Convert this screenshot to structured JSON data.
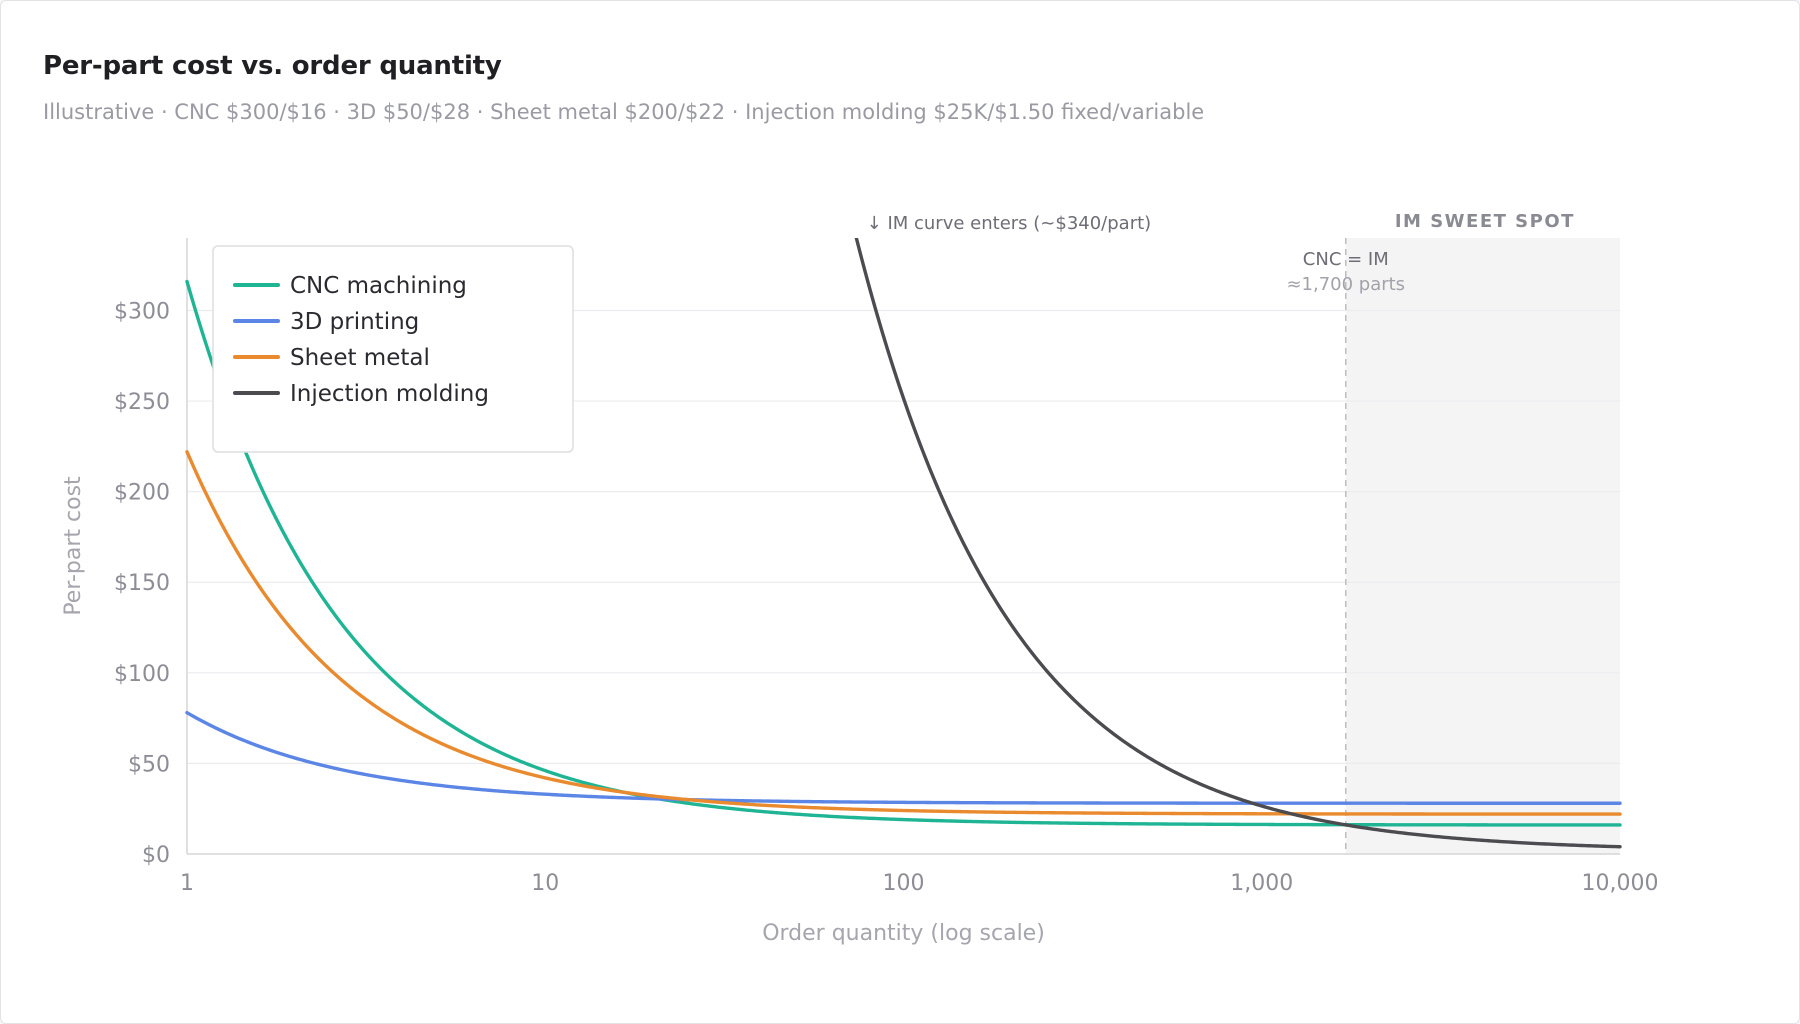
{
  "header": {
    "title": "Per-part cost vs. order quantity",
    "subtitle": "Illustrative · CNC $300/$16 · 3D $50/$28 · Sheet metal $200/$22 · Injection molding $25K/$1.50 fixed/variable"
  },
  "chart_data": {
    "type": "line",
    "xscale": "log",
    "xlim": [
      1,
      10000
    ],
    "ylim": [
      0,
      340
    ],
    "xlabel": "Order quantity (log scale)",
    "ylabel": "Per-part cost",
    "grid": true,
    "legend_position": "top-left",
    "x_ticks": [
      {
        "value": 1,
        "label": "1"
      },
      {
        "value": 10,
        "label": "10"
      },
      {
        "value": 100,
        "label": "100"
      },
      {
        "value": 1000,
        "label": "1,000"
      },
      {
        "value": 10000,
        "label": "10,000"
      }
    ],
    "y_ticks": [
      {
        "value": 0,
        "label": "$0"
      },
      {
        "value": 50,
        "label": "$50"
      },
      {
        "value": 100,
        "label": "$100"
      },
      {
        "value": 150,
        "label": "$150"
      },
      {
        "value": 200,
        "label": "$200"
      },
      {
        "value": 250,
        "label": "$250"
      },
      {
        "value": 300,
        "label": "$300"
      }
    ],
    "series": [
      {
        "name": "CNC machining",
        "color": "#1fb594",
        "fixed": 300,
        "variable": 16
      },
      {
        "name": "3D printing",
        "color": "#5b86e5",
        "fixed": 50,
        "variable": 28
      },
      {
        "name": "Sheet metal",
        "color": "#ea8a2e",
        "fixed": 200,
        "variable": 22
      },
      {
        "name": "Injection molding",
        "color": "#4b4b50",
        "fixed": 25000,
        "variable": 1.5
      }
    ],
    "annotations": {
      "im_enters": {
        "text": "↓ IM curve enters (~$340/part)",
        "x": 74
      },
      "breakeven": {
        "line1": "CNC = IM",
        "line2": "≈1,700 parts",
        "x": 1716
      },
      "region": {
        "label": "IM SWEET SPOT",
        "x_start": 1716,
        "x_end": 10000
      }
    }
  }
}
